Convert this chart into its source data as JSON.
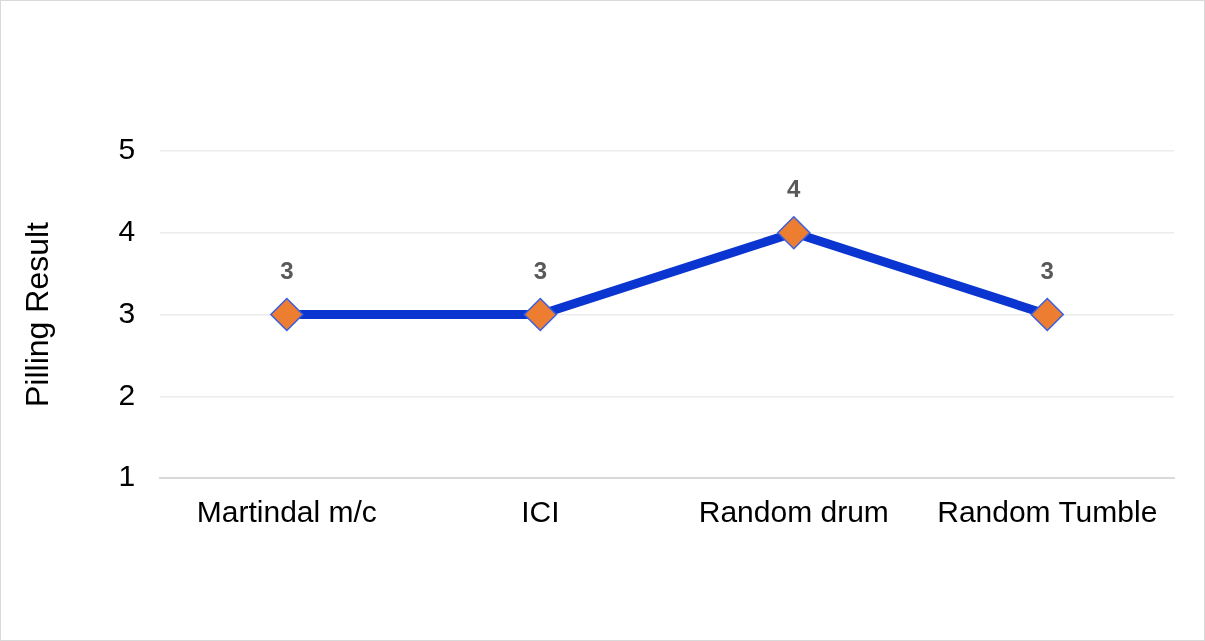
{
  "chart_data": {
    "type": "line",
    "ylabel": "Pilling Result",
    "categories": [
      "Martindal m/c",
      "ICI",
      "Random drum",
      "Random Tumble"
    ],
    "series": [
      {
        "color": "#0a35d0",
        "colors": [
          "#ed7d31",
          "#ed7d31",
          "#ed7d31",
          "#ed7d31"
        ],
        "values": [
          3,
          3,
          4,
          3
        ]
      }
    ],
    "marker": "diamond",
    "data_labels": true,
    "grid": "y",
    "legend": false,
    "ylim": [
      1,
      5
    ],
    "yticks": [
      1,
      2,
      3,
      4,
      5
    ]
  }
}
